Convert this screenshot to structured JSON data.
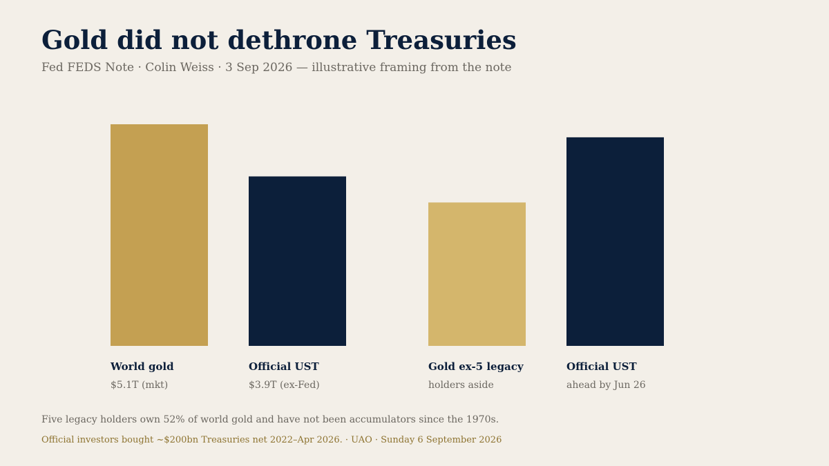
{
  "header": {
    "title": "Gold did not dethrone Treasuries",
    "subtitle": "Fed FEDS Note · Colin Weiss · 3 Sep 2026 — illustrative framing from the note"
  },
  "chart_data": {
    "type": "bar",
    "categories": [
      "World gold",
      "Official UST",
      "Gold ex-5 legacy",
      "Official UST"
    ],
    "category_notes": [
      "$5.1T (mkt)",
      "$3.9T (ex-Fed)",
      "holders aside",
      "ahead by Jun 26"
    ],
    "values": [
      5.1,
      3.9,
      3.3,
      4.8
    ],
    "colors": [
      "#c4a052",
      "#0c1f3a",
      "#d4b66c",
      "#0c1f3a"
    ],
    "ylim": [
      0,
      5.1
    ],
    "grid": false,
    "title": "",
    "xlabel": "",
    "ylabel": ""
  },
  "footer": {
    "note": "Five legacy holders own 52% of world gold and have not been accumulators since the 1970s.",
    "source_line": "Official investors bought ~$200bn Treasuries net 2022–Apr 2026.  ·  UAO · Sunday 6 September 2026"
  }
}
